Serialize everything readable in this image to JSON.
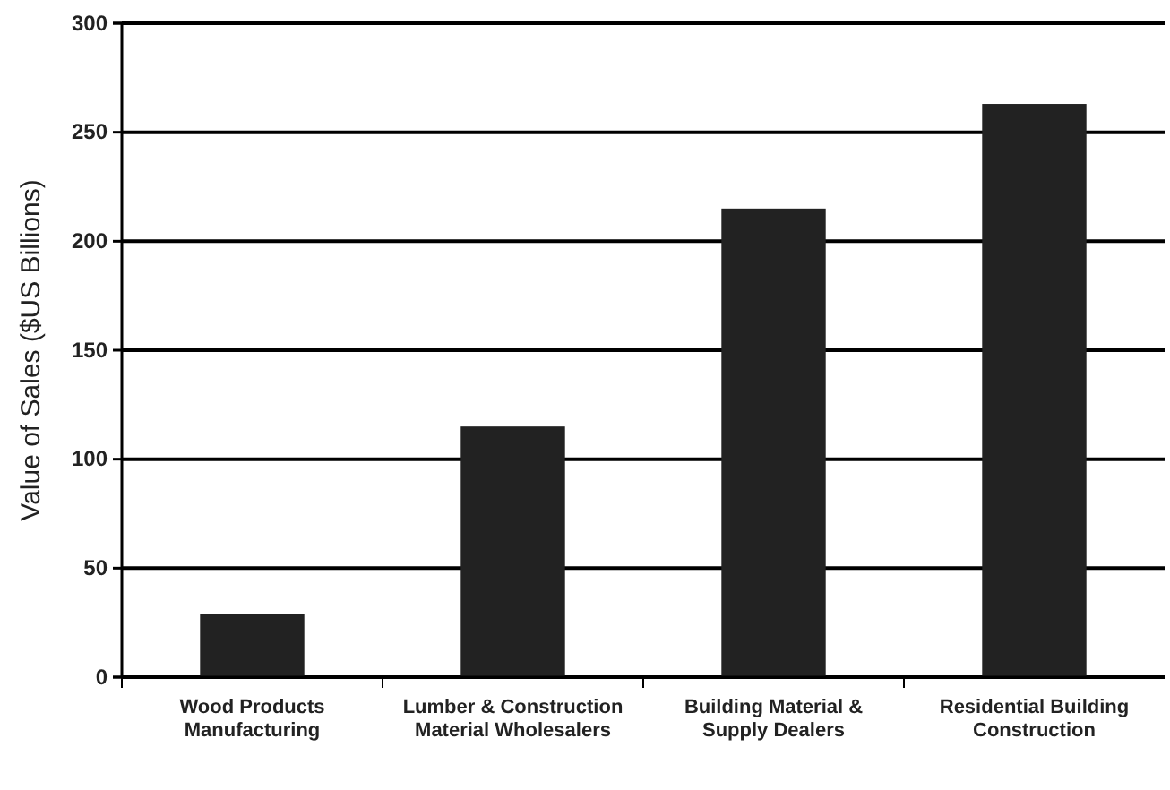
{
  "chart_data": {
    "type": "bar",
    "ylabel": "Value of Sales ($US Billions)",
    "categories": [
      "Wood Products Manufacturing",
      "Lumber & Construction Material Wholesalers",
      "Building Material & Supply Dealers",
      "Residential Building Construction"
    ],
    "values": [
      29,
      115,
      215,
      263
    ],
    "color": "#222222",
    "ylim": [
      0,
      300
    ],
    "yticks": [
      0,
      50,
      100,
      150,
      200,
      250,
      300
    ],
    "grid": "y"
  }
}
